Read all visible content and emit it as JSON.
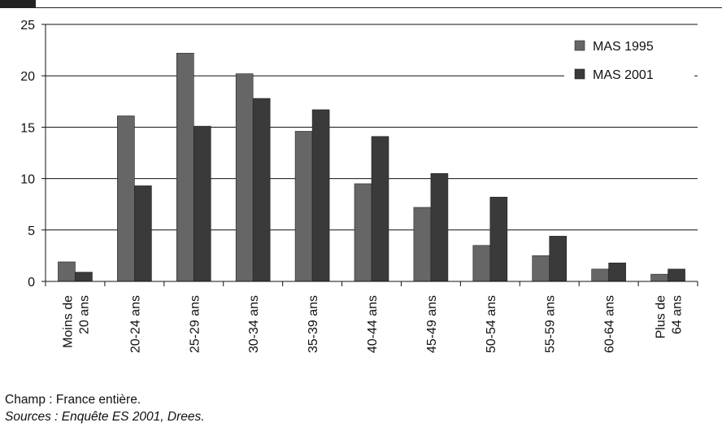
{
  "chart_data": {
    "type": "bar",
    "categories": [
      [
        "Moins de",
        "20 ans"
      ],
      [
        "20-24 ans"
      ],
      [
        "25-29 ans"
      ],
      [
        "30-34 ans"
      ],
      [
        "35-39 ans"
      ],
      [
        "40-44 ans"
      ],
      [
        "45-49 ans"
      ],
      [
        "50-54 ans"
      ],
      [
        "55-59 ans"
      ],
      [
        "60-64 ans"
      ],
      [
        "Plus de",
        "64 ans"
      ]
    ],
    "series": [
      {
        "name": "MAS 1995",
        "color": "#666666",
        "values": [
          1.9,
          16.1,
          22.2,
          20.2,
          14.6,
          9.5,
          7.2,
          3.5,
          2.5,
          1.2,
          0.7
        ]
      },
      {
        "name": "MAS 2001",
        "color": "#3a3a3a",
        "values": [
          0.9,
          9.3,
          15.1,
          17.8,
          16.7,
          14.1,
          10.5,
          8.2,
          4.4,
          1.8,
          1.2
        ]
      }
    ],
    "ylim": [
      0,
      25
    ],
    "yticks": [
      0,
      5,
      10,
      15,
      20,
      25
    ],
    "grid": true,
    "legend_position": "top-right"
  },
  "notes": {
    "champ": "Champ : France entière.",
    "sources": "Sources : Enquête ES 2001, Drees."
  }
}
